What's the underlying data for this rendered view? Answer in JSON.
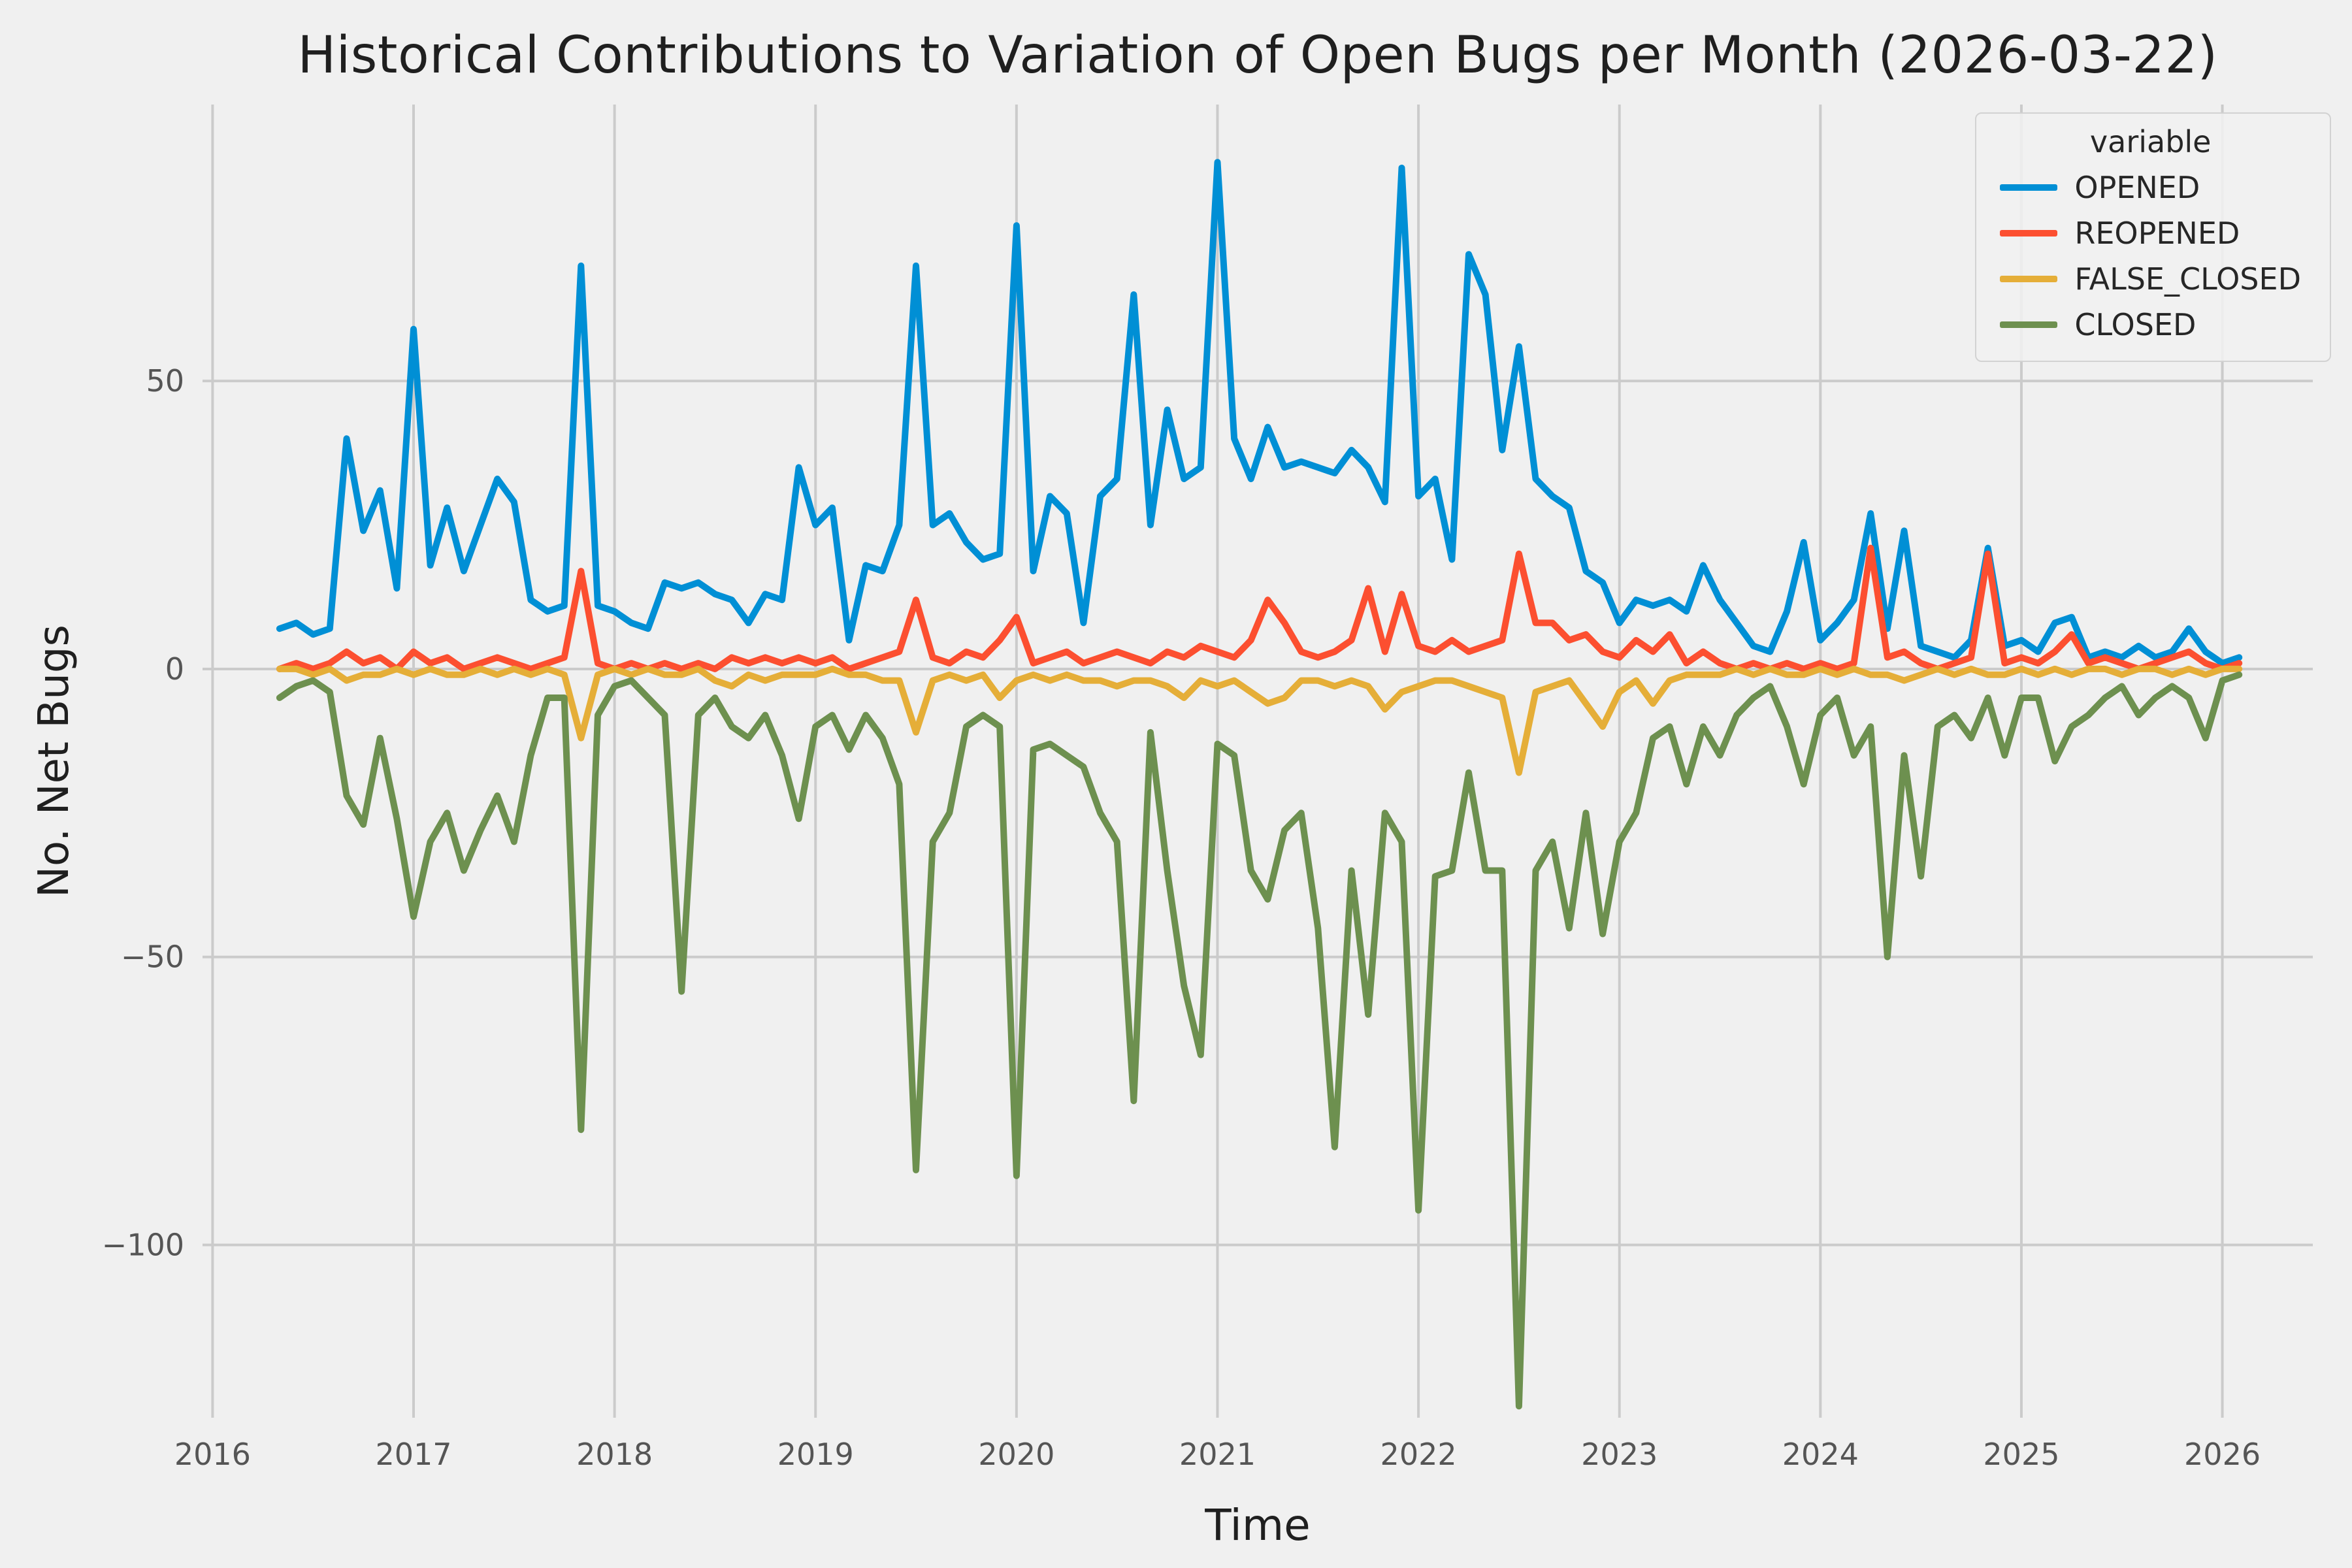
{
  "chart_data": {
    "type": "line",
    "title": "Historical Contributions to Variation of Open Bugs per Month (2026-03-22)",
    "xlabel": "Time",
    "ylabel": "No. Net Bugs",
    "legend_title": "variable",
    "legend_position": "upper right",
    "grid": true,
    "xlim": [
      2015.95,
      2026.45
    ],
    "ylim": [
      -130,
      98
    ],
    "start_year": 2016,
    "start_month": 5,
    "months": 118,
    "xticks": [
      2016,
      2017,
      2018,
      2019,
      2020,
      2021,
      2022,
      2023,
      2024,
      2025,
      2026
    ],
    "yticks": [
      {
        "value": 50,
        "label": "50"
      },
      {
        "value": 0,
        "label": "0"
      },
      {
        "value": -50,
        "label": "−50"
      },
      {
        "value": -100,
        "label": "−100"
      }
    ],
    "style": {
      "background": "#f0f0f0",
      "grid_color": "#cbcbcb",
      "tick_color": "#555555",
      "text_color": "#262626"
    },
    "series": [
      {
        "name": "OPENED",
        "color": "#008fd5",
        "values": [
          7,
          8,
          6,
          7,
          40,
          24,
          31,
          14,
          59,
          18,
          28,
          17,
          25,
          33,
          29,
          12,
          10,
          11,
          70,
          11,
          10,
          8,
          7,
          15,
          14,
          15,
          13,
          12,
          8,
          13,
          12,
          35,
          25,
          28,
          5,
          18,
          17,
          25,
          70,
          25,
          27,
          22,
          19,
          20,
          77,
          17,
          30,
          27,
          8,
          30,
          33,
          65,
          25,
          45,
          33,
          35,
          88,
          40,
          33,
          42,
          35,
          36,
          35,
          34,
          38,
          35,
          29,
          87,
          30,
          33,
          19,
          72,
          65,
          38,
          56,
          33,
          30,
          28,
          17,
          15,
          8,
          12,
          11,
          12,
          10,
          18,
          12,
          8,
          4,
          3,
          10,
          22,
          5,
          8,
          12,
          27,
          7,
          24,
          4,
          3,
          2,
          5,
          21,
          4,
          5,
          3,
          8,
          9,
          2,
          3,
          2,
          4,
          2,
          3,
          7,
          3,
          1,
          2
        ]
      },
      {
        "name": "REOPENED",
        "color": "#fc4f30",
        "values": [
          0,
          1,
          0,
          1,
          3,
          1,
          2,
          0,
          3,
          1,
          2,
          0,
          1,
          2,
          1,
          0,
          1,
          2,
          17,
          1,
          0,
          1,
          0,
          1,
          0,
          1,
          0,
          2,
          1,
          2,
          1,
          2,
          1,
          2,
          0,
          1,
          2,
          3,
          12,
          2,
          1,
          3,
          2,
          5,
          9,
          1,
          2,
          3,
          1,
          2,
          3,
          2,
          1,
          3,
          2,
          4,
          3,
          2,
          5,
          12,
          8,
          3,
          2,
          3,
          5,
          14,
          3,
          13,
          4,
          3,
          5,
          3,
          4,
          5,
          20,
          8,
          8,
          5,
          6,
          3,
          2,
          5,
          3,
          6,
          1,
          3,
          1,
          0,
          1,
          0,
          1,
          0,
          1,
          0,
          1,
          21,
          2,
          3,
          1,
          0,
          1,
          2,
          20,
          1,
          2,
          1,
          3,
          6,
          1,
          2,
          1,
          0,
          1,
          2,
          3,
          1,
          0,
          1
        ]
      },
      {
        "name": "FALSE_CLOSED",
        "color": "#e5ae38",
        "values": [
          0,
          0,
          -1,
          0,
          -2,
          -1,
          -1,
          0,
          -1,
          0,
          -1,
          -1,
          0,
          -1,
          0,
          -1,
          0,
          -1,
          -12,
          -1,
          0,
          -1,
          0,
          -1,
          -1,
          0,
          -2,
          -3,
          -1,
          -2,
          -1,
          -1,
          -1,
          0,
          -1,
          -1,
          -2,
          -2,
          -11,
          -2,
          -1,
          -2,
          -1,
          -5,
          -2,
          -1,
          -2,
          -1,
          -2,
          -2,
          -3,
          -2,
          -2,
          -3,
          -5,
          -2,
          -3,
          -2,
          -4,
          -6,
          -5,
          -2,
          -2,
          -3,
          -2,
          -3,
          -7,
          -4,
          -3,
          -2,
          -2,
          -3,
          -4,
          -5,
          -18,
          -4,
          -3,
          -2,
          -6,
          -10,
          -4,
          -2,
          -6,
          -2,
          -1,
          -1,
          -1,
          0,
          -1,
          0,
          -1,
          -1,
          0,
          -1,
          0,
          -1,
          -1,
          -2,
          -1,
          0,
          -1,
          0,
          -1,
          -1,
          0,
          -1,
          0,
          -1,
          0,
          0,
          -1,
          0,
          0,
          -1,
          0,
          -1,
          0,
          0
        ]
      },
      {
        "name": "CLOSED",
        "color": "#6d904f",
        "values": [
          -5,
          -3,
          -2,
          -4,
          -22,
          -27,
          -12,
          -26,
          -43,
          -30,
          -25,
          -35,
          -28,
          -22,
          -30,
          -15,
          -5,
          -5,
          -80,
          -8,
          -3,
          -2,
          -5,
          -8,
          -56,
          -8,
          -5,
          -10,
          -12,
          -8,
          -15,
          -26,
          -10,
          -8,
          -14,
          -8,
          -12,
          -20,
          -87,
          -30,
          -25,
          -10,
          -8,
          -10,
          -88,
          -14,
          -13,
          -15,
          -17,
          -25,
          -30,
          -75,
          -11,
          -35,
          -55,
          -67,
          -13,
          -15,
          -35,
          -40,
          -28,
          -25,
          -45,
          -83,
          -35,
          -60,
          -25,
          -30,
          -94,
          -36,
          -35,
          -18,
          -35,
          -35,
          -128,
          -35,
          -30,
          -45,
          -25,
          -46,
          -30,
          -25,
          -12,
          -10,
          -20,
          -10,
          -15,
          -8,
          -5,
          -3,
          -10,
          -20,
          -8,
          -5,
          -15,
          -10,
          -50,
          -15,
          -36,
          -10,
          -8,
          -12,
          -5,
          -15,
          -5,
          -5,
          -16,
          -10,
          -8,
          -5,
          -3,
          -8,
          -5,
          -3,
          -5,
          -12,
          -2,
          -1
        ]
      }
    ]
  }
}
